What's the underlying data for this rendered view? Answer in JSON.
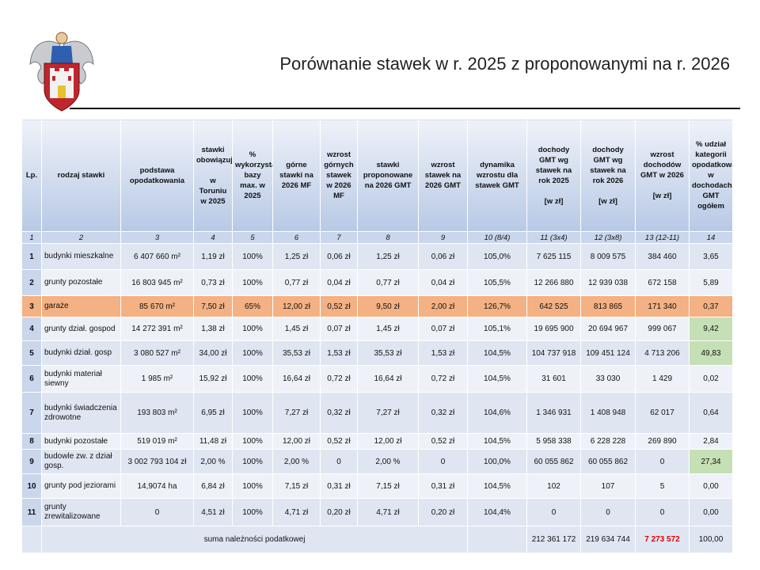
{
  "title": "Porównanie stawek w r. 2025 z proponowanymi na r. 2026",
  "table": {
    "headers": [
      [
        "Lp."
      ],
      [
        "rodzaj stawki"
      ],
      [
        "podstawa opodatkowania"
      ],
      [
        "stawki obowiązujące",
        "w Toruniu w 2025"
      ],
      [
        "% wykorzystania bazy max. w 2025"
      ],
      [
        "górne stawki na 2026 MF"
      ],
      [
        "wzrost górnych stawek w 2026 MF"
      ],
      [
        "stawki proponowane na 2026 GMT"
      ],
      [
        "wzrost stawek na 2026 GMT"
      ],
      [
        "dynamika wzrostu dla stawek GMT"
      ],
      [
        "dochody GMT wg stawek na rok 2025",
        "[w zł]"
      ],
      [
        "dochody GMT wg stawek na rok 2026",
        "[w zł]"
      ],
      [
        "wzrost dochodów GMT w 2026",
        "[w zł]"
      ],
      [
        "% udział kategorii opodatkowania w dochodach GMT ogółem"
      ]
    ],
    "column_numbers": [
      "1",
      "2",
      "3",
      "4",
      "5",
      "6",
      "7",
      "8",
      "9",
      "10 (8/4)",
      "11 (3x4)",
      "12 (3x8)",
      "13 (12-11)",
      "14"
    ],
    "rows": [
      {
        "cells": [
          "1",
          "budynki mieszkalne",
          "6 407 660 m²",
          "1,19 zł",
          "100%",
          "1,25 zł",
          "0,06 zł",
          "1,25 zł",
          "0,06 zł",
          "105,0%",
          "7 625 115",
          "8 009 575",
          "384 460",
          "3,65"
        ]
      },
      {
        "cells": [
          "2",
          "grunty pozostałe",
          "16 803 945 m²",
          "0,73 zł",
          "100%",
          "0,77 zł",
          "0,04 zł",
          "0,77 zł",
          "0,04 zł",
          "105,5%",
          "12 266 880",
          "12 939 038",
          "672 158",
          "5,89"
        ]
      },
      {
        "cells": [
          "3",
          "garaże",
          "85 670 m²",
          "7,50 zł",
          "65%",
          "12,00 zł",
          "0,52 zł",
          "9,50 zł",
          "2,00 zł",
          "126,7%",
          "642 525",
          "813 865",
          "171 340",
          "0,37"
        ],
        "row_color": "#f4b183"
      },
      {
        "cells": [
          "4",
          "grunty dział. gospod",
          "14 272 391 m²",
          "1,38 zł",
          "100%",
          "1,45 zł",
          "0,07 zł",
          "1,45 zł",
          "0,07 zł",
          "105,1%",
          "19 695 900",
          "20 694 967",
          "999 067",
          "9,42"
        ],
        "cell_colors": {
          "13": "#c5e0b4"
        }
      },
      {
        "cells": [
          "5",
          "budynki dział. gosp",
          "3 080 527 m²",
          "34,00 zł",
          "100%",
          "35,53 zł",
          "1,53 zł",
          "35,53 zł",
          "1,53 zł",
          "104,5%",
          "104 737 918",
          "109 451 124",
          "4 713 206",
          "49,83"
        ],
        "cell_colors": {
          "13": "#c5e0b4"
        }
      },
      {
        "cells": [
          "6",
          "budynki materiał siewny",
          "1 985 m²",
          "15,92 zł",
          "100%",
          "16,64 zł",
          "0,72 zł",
          "16,64 zł",
          "0,72 zł",
          "104,5%",
          "31 601",
          "33 030",
          "1 429",
          "0,02"
        ]
      },
      {
        "cells": [
          "7",
          "budynki świadczenia zdrowotne",
          "193 803 m²",
          "6,95 zł",
          "100%",
          "7,27 zł",
          "0,32 zł",
          "7,27 zł",
          "0,32 zł",
          "104,6%",
          "1 346 931",
          "1 408 948",
          "62 017",
          "0,64"
        ]
      },
      {
        "cells": [
          "8",
          "budynki pozostałe",
          "519 019 m²",
          "11,48 zł",
          "100%",
          "12,00 zł",
          "0,52 zł",
          "12,00 zł",
          "0,52 zł",
          "104,5%",
          "5 958 338",
          "6 228 228",
          "269 890",
          "2,84"
        ]
      },
      {
        "cells": [
          "9",
          "budowle zw. z dział gosp.",
          "3 002 793 104 zł",
          "2,00 %",
          "100%",
          "2,00 %",
          "0",
          "2,00 %",
          "0",
          "100,0%",
          "60 055 862",
          "60 055 862",
          "0",
          "27,34"
        ],
        "cell_colors": {
          "13": "#c5e0b4"
        }
      },
      {
        "cells": [
          "10",
          "grunty pod jeziorami",
          "14,9074 ha",
          "6,84 zł",
          "100%",
          "7,15 zł",
          "0,31 zł",
          "7,15 zł",
          "0,31 zł",
          "104,5%",
          "102",
          "107",
          "5",
          "0,00"
        ]
      },
      {
        "cells": [
          "11",
          "grunty zrewitalizowane",
          "0",
          "4,51 zł",
          "100%",
          "4,71 zł",
          "0,20 zł",
          "4,71 zł",
          "0,20 zł",
          "104,4%",
          "0",
          "0",
          "0",
          "0,00"
        ]
      }
    ],
    "sum": {
      "label": "suma należności podatkowej",
      "cells": [
        "212 361 172",
        "219 634 744",
        "7 273 572",
        "100,00"
      ],
      "text_colors": {
        "2": "#e00000"
      }
    }
  }
}
